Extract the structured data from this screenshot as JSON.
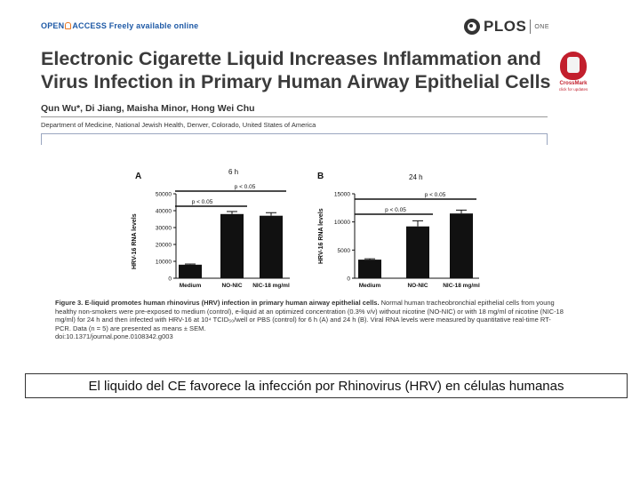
{
  "header": {
    "open_access_prefix": "OPEN",
    "open_access_suffix": "ACCESS Freely available online",
    "publisher": "PLOS",
    "journal": "ONE"
  },
  "paper": {
    "title_line1": "Electronic Cigarette Liquid Increases Inflammation and",
    "title_line2": "Virus Infection in Primary Human Airway Epithelial Cells",
    "authors": "Qun Wu*, Di Jiang, Maisha Minor, Hong Wei Chu",
    "affiliation": "Department of Medicine, National Jewish Health, Denver, Colorado, United States of America",
    "crossmark_label": "CrossMark",
    "crossmark_sub": "click for updates"
  },
  "figure": {
    "caption_number": "Figure 3.",
    "caption_title": "E-liquid promotes human rhinovirus (HRV) infection in primary human airway epithelial cells.",
    "caption_body": "Normal human tracheobronchial epithelial cells from young healthy non-smokers were pre-exposed to medium (control), e-liquid at an optimized concentration (0.3% v/v) without nicotine (NO-NIC) or with 18 mg/ml of nicotine (NIC-18 mg/ml) for 24 h and then infected with HRV-16 at 10⁴ TCID₅₀/well or PBS (control) for 6 h (A) and 24 h (B). Viral RNA levels were measured by quantitative real-time RT-PCR. Data (n = 5) are presented as means ± SEM.",
    "doi": "doi:10.1371/journal.pone.0108342.g003"
  },
  "chart_data": [
    {
      "type": "bar",
      "panel": "A",
      "title": "6 h",
      "ylabel": "HRV-16 RNA levels",
      "categories": [
        "Medium",
        "NO-NIC",
        "NIC-18 mg/ml"
      ],
      "values": [
        8000,
        38000,
        37000
      ],
      "errors": [
        400,
        1500,
        1800
      ],
      "ylim": [
        0,
        50000
      ],
      "yticks": [
        0,
        10000,
        20000,
        30000,
        40000,
        50000
      ],
      "annotations": [
        {
          "text": "p < 0.05",
          "from": 0,
          "to": 2
        },
        {
          "text": "p < 0.05",
          "from": 0,
          "to": 1
        }
      ],
      "bar_color": "#111111"
    },
    {
      "type": "bar",
      "panel": "B",
      "title": "24 h",
      "ylabel": "HRV-16 RNA levels",
      "categories": [
        "Medium",
        "NO-NIC",
        "NIC-18 mg/ml"
      ],
      "values": [
        3300,
        9200,
        11500
      ],
      "errors": [
        150,
        1000,
        600
      ],
      "ylim": [
        0,
        15000
      ],
      "yticks": [
        0,
        5000,
        10000,
        15000
      ],
      "annotations": [
        {
          "text": "p < 0.05",
          "from": 0,
          "to": 2
        },
        {
          "text": "p < 0.05",
          "from": 0,
          "to": 1
        }
      ],
      "bar_color": "#111111"
    }
  ],
  "slide": {
    "caption_es": "El liquido del CE favorece la infección por Rhinovirus (HRV) en células humanas"
  }
}
